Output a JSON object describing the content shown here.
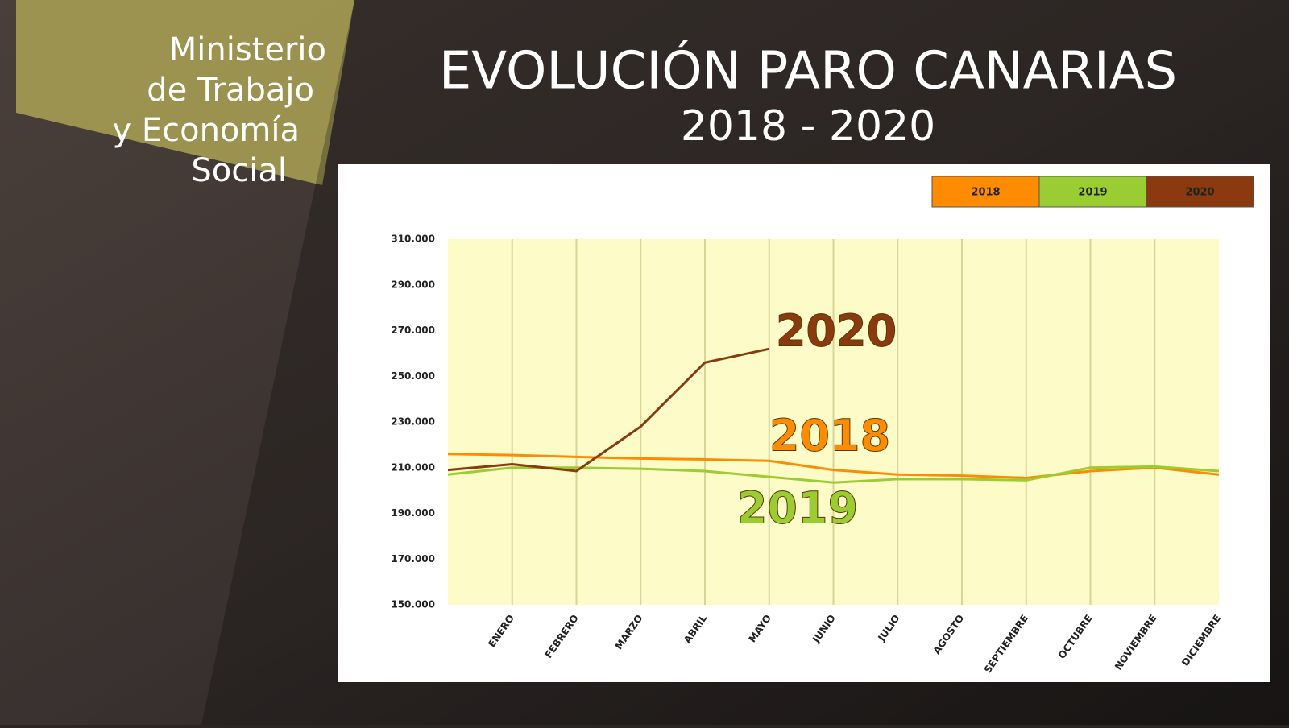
{
  "header": {
    "logo": [
      "Ministerio",
      "de Trabajo",
      "y Economía",
      "Social"
    ]
  },
  "chart_data": {
    "type": "line",
    "title": "EVOLUCIÓN PARO CANARIAS",
    "subtitle": "2018 - 2020",
    "categories": [
      null,
      "ENERO",
      "FEBRERO",
      "MARZO",
      "ABRIL",
      "MAYO",
      "JUNIO",
      "JULIO",
      "AGOSTO",
      "SEPTIEMBRE",
      "OCTUBRE",
      "NOVIEMBRE",
      "DICIEMBRE"
    ],
    "series": [
      {
        "name": "2018",
        "color": "#ff8c00",
        "values": [
          216000,
          215500,
          214700,
          214000,
          213600,
          213000,
          209000,
          207000,
          206500,
          205500,
          208500,
          210000,
          207000
        ]
      },
      {
        "name": "2019",
        "color": "#9acd32",
        "values": [
          207000,
          210000,
          210000,
          209500,
          208500,
          206000,
          203500,
          205000,
          205000,
          204500,
          210000,
          210500,
          208500
        ]
      },
      {
        "name": "2020",
        "color": "#8b3a0f",
        "values": [
          209000,
          211500,
          208500,
          228000,
          256000,
          262000,
          null,
          null,
          null,
          null,
          null,
          null,
          null
        ]
      }
    ],
    "ylim": [
      150000,
      310000
    ],
    "yticks": [
      {
        "value": 150000,
        "label": "150.000"
      },
      {
        "value": 170000,
        "label": "170.000"
      },
      {
        "value": 190000,
        "label": "190.000"
      },
      {
        "value": 210000,
        "label": "210.000"
      },
      {
        "value": 230000,
        "label": "230.000"
      },
      {
        "value": 250000,
        "label": "250.000"
      },
      {
        "value": 270000,
        "label": "270.000"
      },
      {
        "value": 290000,
        "label": "290.000"
      },
      {
        "value": 310000,
        "label": "310.000"
      }
    ],
    "grid": true,
    "legend": "top-right"
  }
}
